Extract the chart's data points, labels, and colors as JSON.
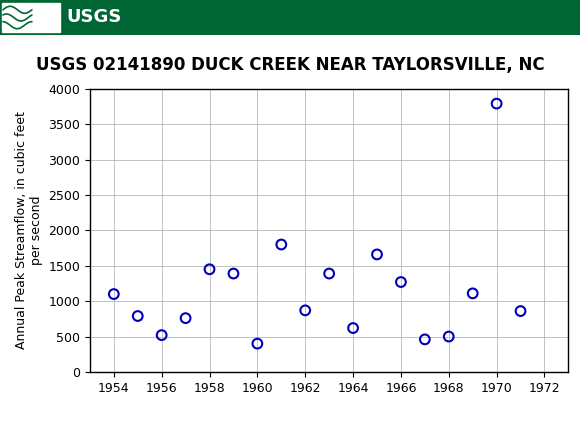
{
  "title": "USGS 02141890 DUCK CREEK NEAR TAYLORSVILLE, NC",
  "ylabel": "Annual Peak Streamflow, in cubic feet\nper second",
  "years": [
    1954,
    1955,
    1956,
    1957,
    1958,
    1959,
    1960,
    1961,
    1962,
    1963,
    1964,
    1965,
    1966,
    1967,
    1968,
    1969,
    1970,
    1971
  ],
  "flows": [
    1100,
    790,
    520,
    760,
    1450,
    1390,
    400,
    1800,
    870,
    1390,
    620,
    1660,
    1270,
    460,
    500,
    1110,
    3790,
    860
  ],
  "xlim": [
    1953,
    1973
  ],
  "ylim": [
    0,
    4000
  ],
  "xticks": [
    1954,
    1956,
    1958,
    1960,
    1962,
    1964,
    1966,
    1968,
    1970,
    1972
  ],
  "yticks": [
    0,
    500,
    1000,
    1500,
    2000,
    2500,
    3000,
    3500,
    4000
  ],
  "marker_color": "#0000bb",
  "marker_size": 7,
  "marker_style": "o",
  "marker_facecolor": "none",
  "marker_linewidth": 1.5,
  "grid_color": "#aaaaaa",
  "grid_linewidth": 0.5,
  "title_fontsize": 12,
  "label_fontsize": 9,
  "tick_fontsize": 9,
  "header_color": "#006633",
  "header_text_color": "#ffffff",
  "bg_color": "#ffffff",
  "plot_bg_color": "#ffffff",
  "font_family": "DejaVu Sans",
  "title_fontfamily": "DejaVu Sans"
}
